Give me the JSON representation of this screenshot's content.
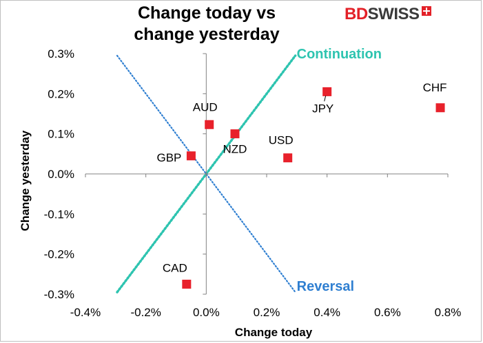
{
  "header": {
    "title_line1": "Change today vs",
    "title_line2": "change yesterday"
  },
  "logo": {
    "part1": "BD",
    "part2": "SWISS",
    "icon": "swiss-cross-icon"
  },
  "chart_data": {
    "type": "scatter",
    "xlabel": "Change today",
    "ylabel": "Change yesterday",
    "xlim": [
      -0.4,
      0.8
    ],
    "ylim": [
      -0.3,
      0.3
    ],
    "x_ticks": [
      -0.4,
      -0.2,
      0.0,
      0.2,
      0.4,
      0.6,
      0.8
    ],
    "y_ticks": [
      -0.3,
      -0.2,
      -0.1,
      0.0,
      0.1,
      0.2,
      0.3
    ],
    "x_tick_labels": [
      "-0.4%",
      "-0.2%",
      "0.0%",
      "0.2%",
      "0.4%",
      "0.6%",
      "0.8%"
    ],
    "y_tick_labels": [
      "-0.3%",
      "-0.2%",
      "-0.1%",
      "0.0%",
      "0.1%",
      "0.2%",
      "0.3%"
    ],
    "grid": false,
    "marker_color": "#e8212b",
    "points": [
      {
        "label": "CHF",
        "x": 0.775,
        "y": 0.165
      },
      {
        "label": "JPY",
        "x": 0.4,
        "y": 0.205
      },
      {
        "label": "USD",
        "x": 0.27,
        "y": 0.04
      },
      {
        "label": "NZD",
        "x": 0.095,
        "y": 0.1
      },
      {
        "label": "AUD",
        "x": 0.01,
        "y": 0.123
      },
      {
        "label": "GBP",
        "x": -0.05,
        "y": 0.045
      },
      {
        "label": "CAD",
        "x": -0.065,
        "y": -0.275
      }
    ],
    "reference_lines": [
      {
        "label": "Continuation",
        "color": "#2ec4b0",
        "from": [
          -0.295,
          -0.295
        ],
        "to": [
          0.295,
          0.295
        ]
      },
      {
        "label": "Reversal",
        "color": "#2f7fd1",
        "from": [
          -0.295,
          0.295
        ],
        "to": [
          0.295,
          -0.295
        ]
      }
    ]
  }
}
